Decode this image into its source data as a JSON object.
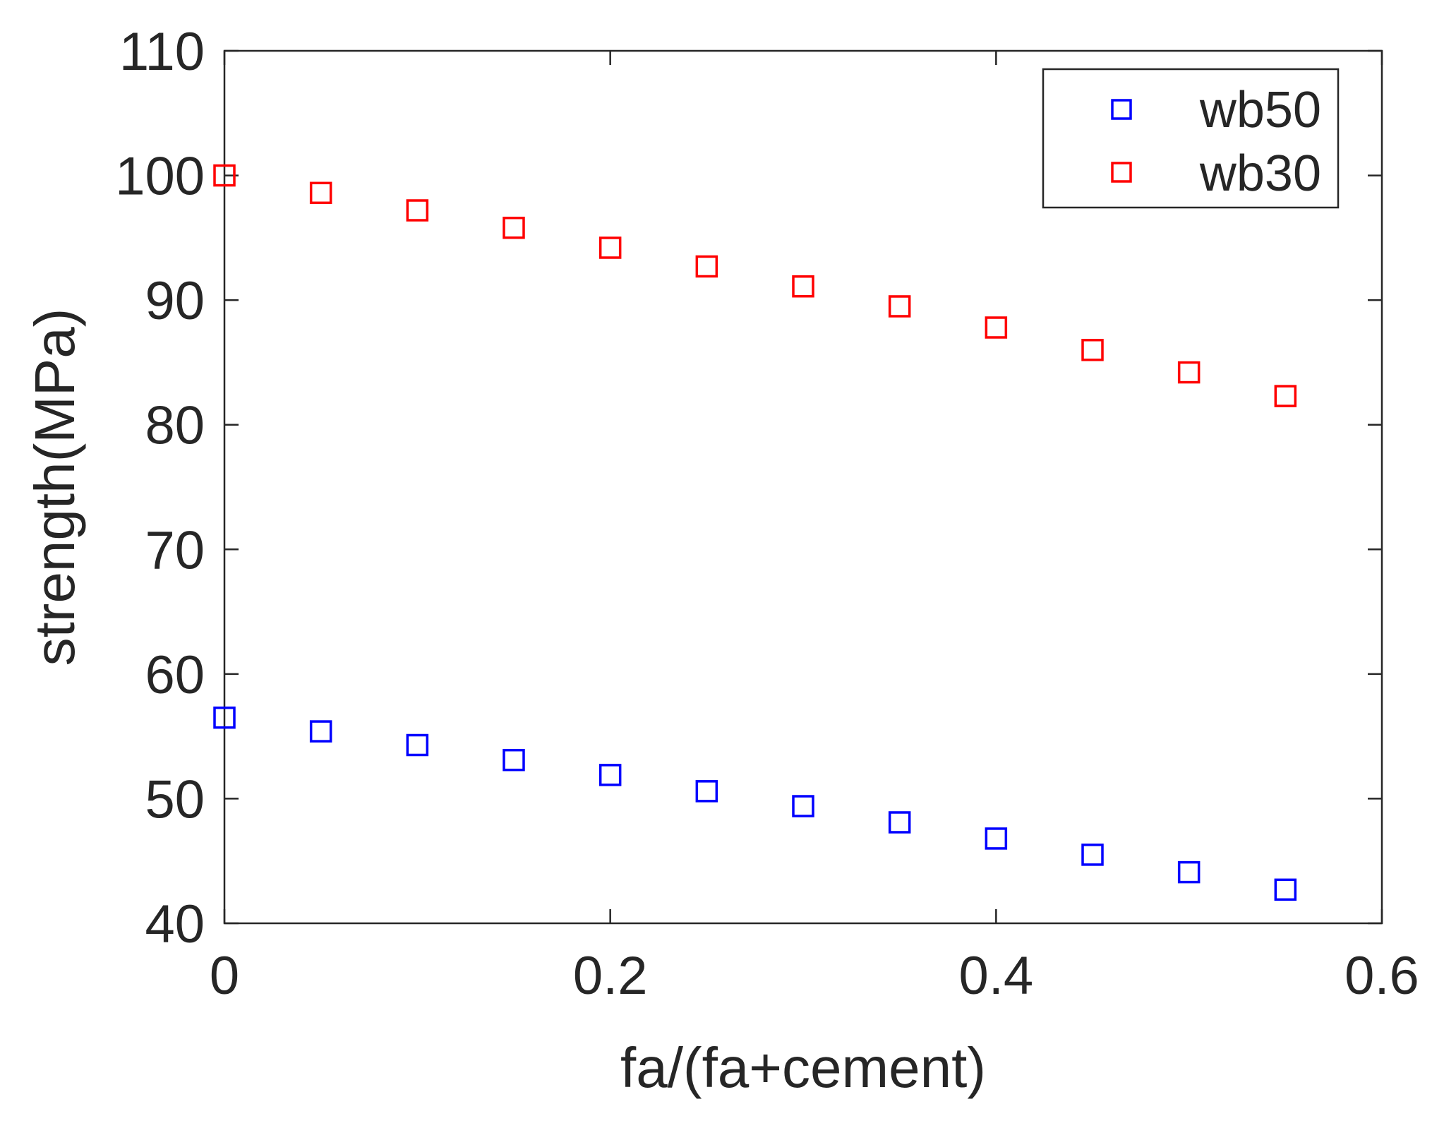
{
  "chart_data": {
    "type": "scatter",
    "title": "",
    "xlabel": "fa/(fa+cement)",
    "ylabel": "strength(MPa)",
    "xlim": [
      0,
      0.6
    ],
    "ylim": [
      40,
      110
    ],
    "xticks": [
      0,
      0.2,
      0.4,
      0.6
    ],
    "xtick_labels": [
      "0",
      "0.2",
      "0.4",
      "0.6"
    ],
    "yticks": [
      40,
      50,
      60,
      70,
      80,
      90,
      100,
      110
    ],
    "ytick_labels": [
      "40",
      "50",
      "60",
      "70",
      "80",
      "90",
      "100",
      "110"
    ],
    "grid": false,
    "legend_position": "top-right",
    "marker": "square",
    "series": [
      {
        "name": "wb50",
        "color": "#0000ff",
        "x": [
          0,
          0.05,
          0.1,
          0.15,
          0.2,
          0.25,
          0.3,
          0.35,
          0.4,
          0.45,
          0.5,
          0.55
        ],
        "y": [
          56.5,
          55.4,
          54.3,
          53.1,
          51.9,
          50.6,
          49.4,
          48.1,
          46.8,
          45.5,
          44.1,
          42.7
        ]
      },
      {
        "name": "wb30",
        "color": "#ff0000",
        "x": [
          0,
          0.05,
          0.1,
          0.15,
          0.2,
          0.25,
          0.3,
          0.35,
          0.4,
          0.45,
          0.5,
          0.55
        ],
        "y": [
          100,
          98.6,
          97.2,
          95.8,
          94.2,
          92.7,
          91.1,
          89.5,
          87.8,
          86.0,
          84.2,
          82.3
        ]
      }
    ]
  }
}
